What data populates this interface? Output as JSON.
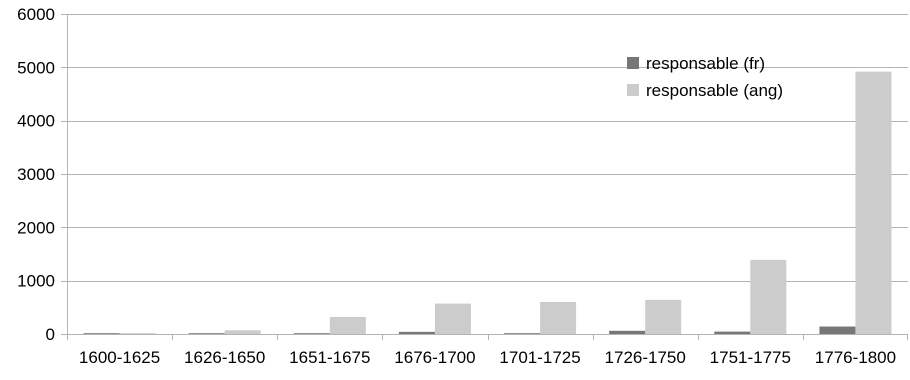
{
  "chart_data": {
    "type": "bar",
    "categories": [
      "1600-1625",
      "1626-1650",
      "1651-1675",
      "1676-1700",
      "1701-1725",
      "1726-1750",
      "1751-1775",
      "1776-1800"
    ],
    "series": [
      {
        "name": "responsable (fr)",
        "color": "#777777",
        "values": [
          5,
          10,
          15,
          40,
          15,
          60,
          45,
          140
        ]
      },
      {
        "name": "responsable (ang)",
        "color": "#cccccc",
        "values": [
          5,
          70,
          320,
          570,
          600,
          640,
          1390,
          4920
        ]
      }
    ],
    "ylim": [
      0,
      6000
    ],
    "yticks": [
      0,
      1000,
      2000,
      3000,
      4000,
      5000,
      6000
    ],
    "grid": true,
    "legend_position": "top-right",
    "title": "",
    "xlabel": "",
    "ylabel": ""
  }
}
